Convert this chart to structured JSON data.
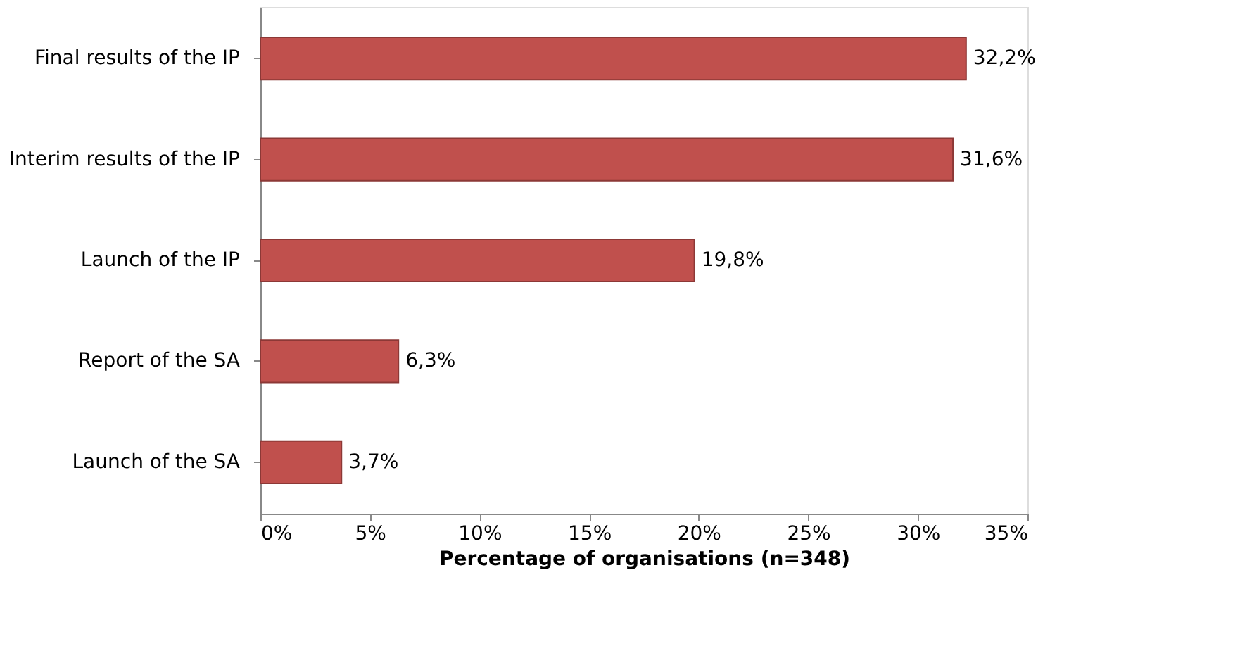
{
  "chart_data": {
    "type": "bar",
    "orientation": "horizontal",
    "categories": [
      "Final results of the IP",
      "Interim results of the IP",
      "Launch of the IP",
      "Report of the SA",
      "Launch of the SA"
    ],
    "values": [
      32.2,
      31.6,
      19.8,
      6.3,
      3.7
    ],
    "value_labels": [
      "32,2%",
      "31,6%",
      "19,8%",
      "6,3%",
      "3,7%"
    ],
    "color": "#c0504d",
    "xlabel": "Percentage of organisations (n=348)",
    "xlim": [
      0,
      35
    ],
    "xticks": [
      {
        "value": 0,
        "label": "0%"
      },
      {
        "value": 5,
        "label": "5%"
      },
      {
        "value": 10,
        "label": "10%"
      },
      {
        "value": 15,
        "label": "15%"
      },
      {
        "value": 20,
        "label": "20%"
      },
      {
        "value": 25,
        "label": "25%"
      },
      {
        "value": 30,
        "label": "30%"
      },
      {
        "value": 35,
        "label": "35%"
      }
    ],
    "grid": false
  }
}
